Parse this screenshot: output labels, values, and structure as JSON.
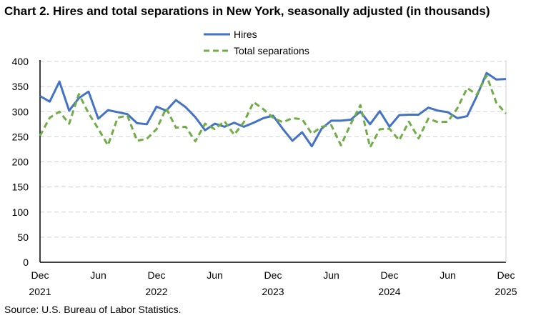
{
  "chart_data": {
    "type": "line",
    "title": "Chart 2. Hires and total separations in New York, seasonally adjusted (in thousands)",
    "source": "Source: U.S. Bureau of Labor Statistics.",
    "xlabel": "",
    "ylabel": "",
    "ylim": [
      0,
      400
    ],
    "yticks": [
      0,
      50,
      100,
      150,
      200,
      250,
      300,
      350,
      400
    ],
    "grid": true,
    "legend_position": "top-center",
    "x_start": "Dec 2021",
    "x_end": "Dec 2025",
    "xtick_labels": [
      {
        "month": "Dec",
        "year": "2021"
      },
      {
        "month": "Jun",
        "year": ""
      },
      {
        "month": "Dec",
        "year": "2022"
      },
      {
        "month": "Jun",
        "year": ""
      },
      {
        "month": "Dec",
        "year": "2023"
      },
      {
        "month": "Jun",
        "year": ""
      },
      {
        "month": "Dec",
        "year": "2024"
      },
      {
        "month": "Jun",
        "year": ""
      },
      {
        "month": "Dec",
        "year": "2025"
      }
    ],
    "series": [
      {
        "name": "Hires",
        "color": "#4472C4",
        "style": "solid",
        "values": [
          331,
          320,
          360,
          302,
          327,
          340,
          286,
          303,
          299,
          295,
          277,
          275,
          310,
          302,
          323,
          309,
          289,
          263,
          276,
          270,
          278,
          270,
          278,
          287,
          292,
          266,
          242,
          259,
          231,
          266,
          282,
          282,
          284,
          300,
          275,
          301,
          270,
          293,
          294,
          294,
          308,
          302,
          299,
          287,
          291,
          331,
          377,
          364,
          365
        ]
      },
      {
        "name": "Total separations",
        "color": "#70AD47",
        "style": "dashed",
        "values": [
          252,
          288,
          300,
          276,
          335,
          297,
          266,
          233,
          288,
          292,
          242,
          246,
          265,
          307,
          268,
          270,
          241,
          276,
          265,
          281,
          254,
          279,
          319,
          305,
          288,
          279,
          287,
          285,
          256,
          270,
          273,
          233,
          275,
          313,
          229,
          265,
          266,
          243,
          280,
          247,
          286,
          279,
          280,
          307,
          347,
          334,
          372,
          318,
          296
        ]
      }
    ]
  }
}
